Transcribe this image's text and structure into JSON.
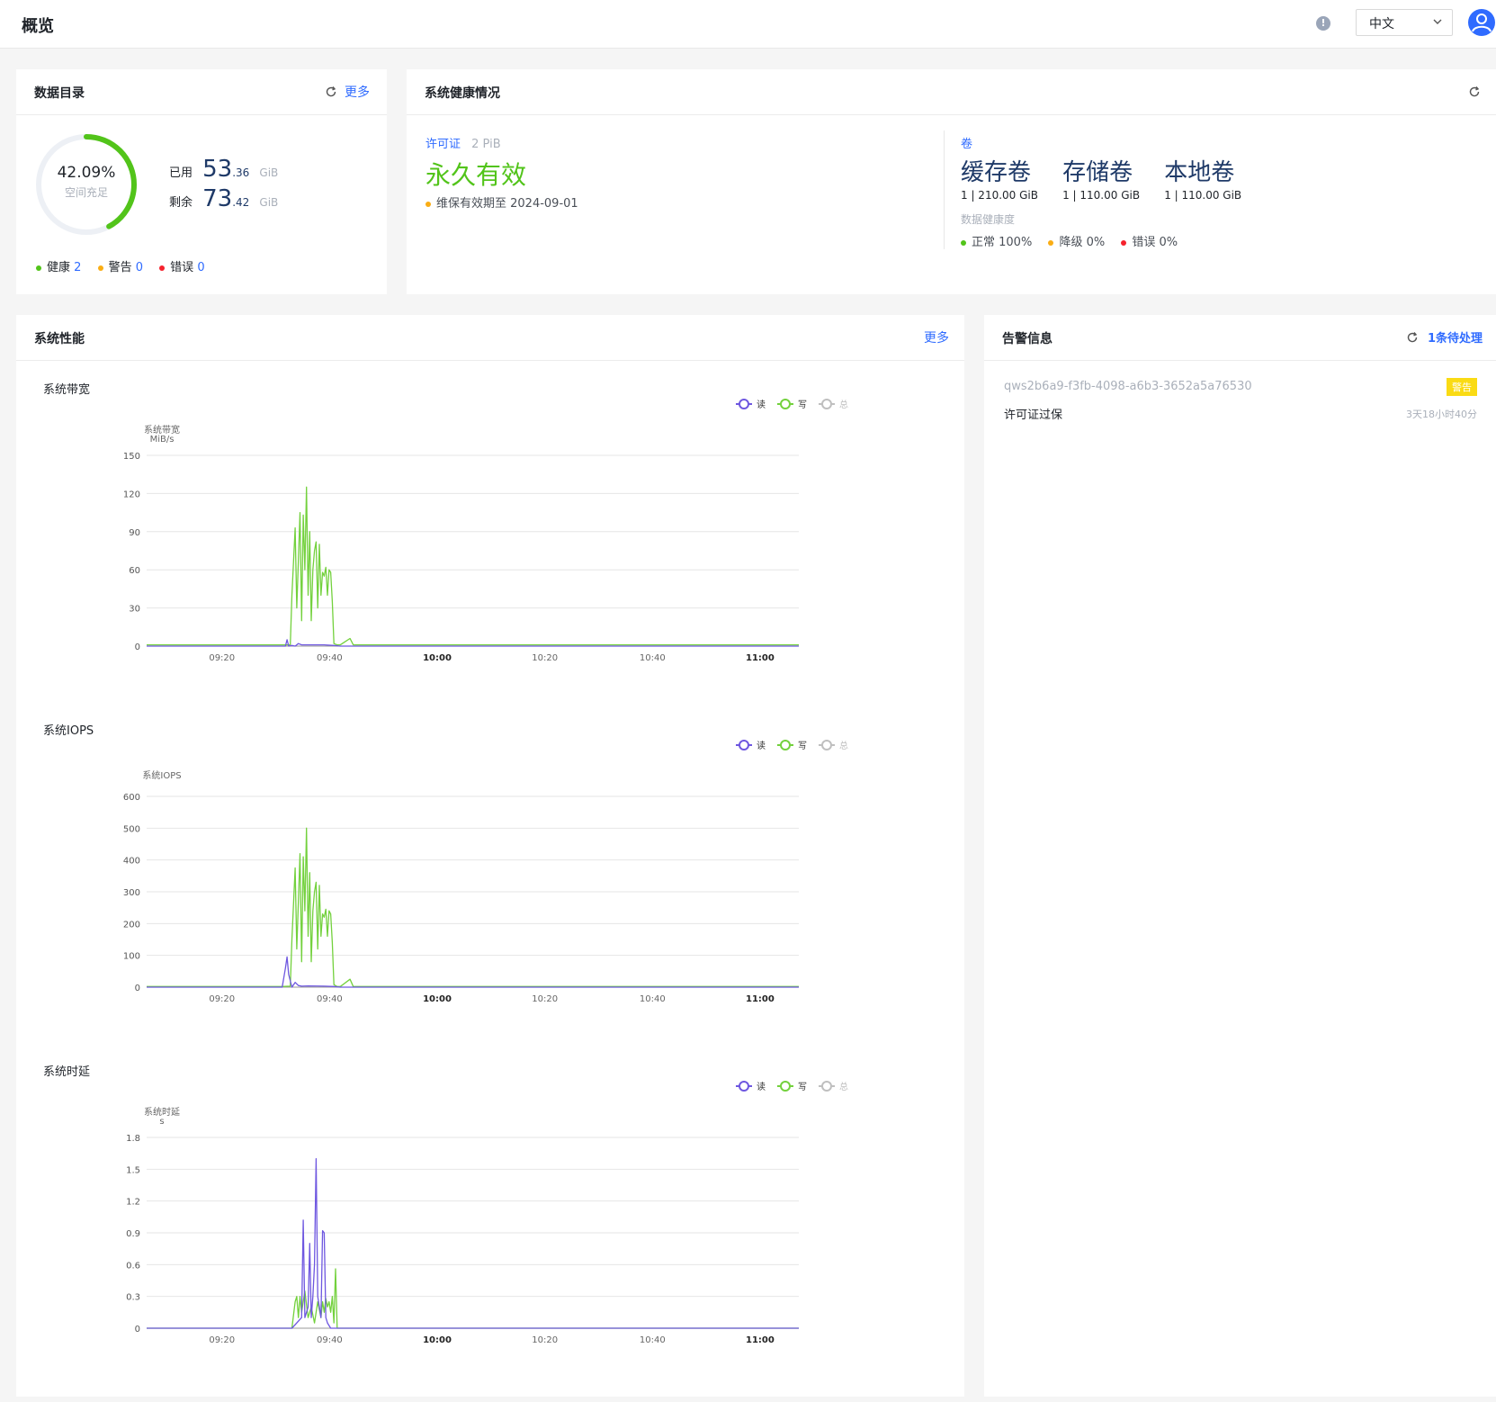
{
  "header": {
    "title": "概览",
    "language": "中文"
  },
  "catalog": {
    "title": "数据目录",
    "more": "更多",
    "percent": "42.09%",
    "percent_value": 42.09,
    "percent_caption": "空间充足",
    "used_label": "已用",
    "used_int": "53",
    "used_dec": ".36",
    "used_unit": "GiB",
    "free_label": "剩余",
    "free_int": "73",
    "free_dec": ".42",
    "free_unit": "GiB",
    "status": [
      {
        "label": "健康",
        "count": "2",
        "color": "#52c41a"
      },
      {
        "label": "警告",
        "count": "0",
        "color": "#faad14"
      },
      {
        "label": "错误",
        "count": "0",
        "color": "#f5222d"
      }
    ]
  },
  "health": {
    "title": "系统健康情况",
    "license_label": "许可证",
    "license_capacity": "2 PiB",
    "license_status": "永久有效",
    "maintenance": "维保有效期至 2024-09-01",
    "volume_label": "卷",
    "volumes": [
      {
        "name": "缓存卷",
        "detail": "1 | 210.00 GiB"
      },
      {
        "name": "存储卷",
        "detail": "1 | 110.00 GiB"
      },
      {
        "name": "本地卷",
        "detail": "1 | 110.00 GiB"
      }
    ],
    "data_health_label": "数据健康度",
    "data_health": [
      {
        "label": "正常 100%",
        "color": "#52c41a"
      },
      {
        "label": "降级 0%",
        "color": "#faad14"
      },
      {
        "label": "错误 0%",
        "color": "#f5222d"
      }
    ]
  },
  "performance": {
    "title": "系统性能",
    "more": "更多",
    "legend": [
      {
        "label": "读",
        "color": "#6e57e0"
      },
      {
        "label": "写",
        "color": "#73d13d"
      },
      {
        "label": "总",
        "color": "#bfbfbf"
      }
    ]
  },
  "alerts": {
    "title": "告警信息",
    "pending": "1条待处理",
    "items": [
      {
        "id": "qws2b6a9-f3fb-4098-a6b3-3652a5a76530",
        "level": "警告",
        "message": "许可证过保",
        "age": "3天18小时40分"
      }
    ]
  },
  "chart_data": [
    {
      "type": "line",
      "title": "系统带宽",
      "ylabel": "系统带宽",
      "yunit": "MiB/s",
      "yticks": [
        "0",
        "30",
        "60",
        "90",
        "120",
        "150"
      ],
      "ylim": [
        0,
        150
      ],
      "xticks": [
        "09:20",
        "09:40",
        "10:00",
        "10:20",
        "10:40",
        "11:00"
      ],
      "xticks_bold": [
        false,
        false,
        true,
        false,
        false,
        true
      ],
      "xlim": [
        9.1,
        11.12
      ],
      "series": [
        {
          "name": "读",
          "color": "#6e57e0",
          "x": [
            9.1,
            9.5,
            9.53,
            9.535,
            9.54,
            9.55,
            9.56,
            9.57,
            9.58,
            9.6,
            9.65,
            9.68,
            9.7,
            11.12
          ],
          "y": [
            0,
            0,
            0,
            5,
            0,
            0.5,
            0,
            2,
            1,
            1,
            1,
            0.5,
            0,
            0
          ]
        },
        {
          "name": "写",
          "color": "#73d13d",
          "x": [
            9.1,
            9.49,
            9.52,
            9.545,
            9.55,
            9.56,
            9.565,
            9.575,
            9.58,
            9.585,
            9.59,
            9.595,
            9.6,
            9.605,
            9.61,
            9.615,
            9.62,
            9.625,
            9.63,
            9.635,
            9.64,
            9.645,
            9.65,
            9.655,
            9.66,
            9.665,
            9.67,
            9.675,
            9.68,
            9.69,
            9.7,
            9.73,
            9.74,
            9.75,
            11.12
          ],
          "y": [
            1,
            1,
            1,
            1,
            40,
            93,
            30,
            105,
            20,
            103,
            60,
            125,
            40,
            90,
            20,
            60,
            75,
            82,
            30,
            80,
            40,
            58,
            55,
            62,
            40,
            60,
            58,
            35,
            2,
            1,
            1,
            6,
            1,
            1,
            1
          ]
        },
        {
          "name": "总",
          "color": "#bfbfbf",
          "x": [],
          "y": []
        }
      ]
    },
    {
      "type": "line",
      "title": "系统IOPS",
      "ylabel": "系统IOPS",
      "yunit": "",
      "yticks": [
        "0",
        "100",
        "200",
        "300",
        "400",
        "500",
        "600"
      ],
      "ylim": [
        0,
        600
      ],
      "xticks": [
        "09:20",
        "09:40",
        "10:00",
        "10:20",
        "10:40",
        "11:00"
      ],
      "xticks_bold": [
        false,
        false,
        true,
        false,
        false,
        true
      ],
      "xlim": [
        9.1,
        11.12
      ],
      "series": [
        {
          "name": "读",
          "color": "#6e57e0",
          "x": [
            9.1,
            9.5,
            9.52,
            9.53,
            9.535,
            9.54,
            9.55,
            9.56,
            9.57,
            9.58,
            9.6,
            9.65,
            9.68,
            9.7,
            11.12
          ],
          "y": [
            0,
            0,
            0,
            60,
            95,
            40,
            0,
            15,
            5,
            3,
            4,
            3,
            2,
            0,
            0
          ]
        },
        {
          "name": "写",
          "color": "#73d13d",
          "x": [
            9.1,
            9.49,
            9.52,
            9.545,
            9.55,
            9.56,
            9.565,
            9.575,
            9.58,
            9.585,
            9.59,
            9.595,
            9.6,
            9.605,
            9.61,
            9.615,
            9.62,
            9.625,
            9.63,
            9.635,
            9.64,
            9.645,
            9.65,
            9.655,
            9.66,
            9.665,
            9.67,
            9.675,
            9.68,
            9.69,
            9.7,
            9.73,
            9.74,
            9.75,
            11.12
          ],
          "y": [
            2,
            2,
            2,
            3,
            150,
            375,
            120,
            420,
            80,
            410,
            240,
            500,
            160,
            360,
            80,
            240,
            300,
            330,
            120,
            320,
            160,
            230,
            220,
            245,
            160,
            240,
            230,
            140,
            8,
            2,
            2,
            25,
            2,
            2,
            2
          ]
        },
        {
          "name": "总",
          "color": "#bfbfbf",
          "x": [],
          "y": []
        }
      ]
    },
    {
      "type": "line",
      "title": "系统时延",
      "ylabel": "系统时延",
      "yunit": "s",
      "yticks": [
        "0",
        "0.3",
        "0.6",
        "0.9",
        "1.2",
        "1.5",
        "1.8"
      ],
      "ylim": [
        0,
        1.8
      ],
      "xticks": [
        "09:20",
        "09:40",
        "10:00",
        "10:20",
        "10:40",
        "11:00"
      ],
      "xticks_bold": [
        false,
        false,
        true,
        false,
        false,
        true
      ],
      "xlim": [
        9.1,
        11.12
      ],
      "series": [
        {
          "name": "读",
          "color": "#6e57e0",
          "x": [
            9.1,
            9.5,
            9.55,
            9.58,
            9.585,
            9.59,
            9.6,
            9.605,
            9.61,
            9.615,
            9.62,
            9.625,
            9.63,
            9.635,
            9.64,
            9.645,
            9.65,
            9.655,
            9.66,
            9.67,
            11.12
          ],
          "y": [
            0,
            0,
            0,
            0.1,
            1.02,
            0.1,
            0.2,
            0.8,
            0.1,
            0.3,
            0.6,
            1.6,
            0.3,
            0.2,
            0.1,
            0.92,
            0.9,
            0.1,
            0.05,
            0,
            0
          ]
        },
        {
          "name": "写",
          "color": "#73d13d",
          "x": [
            9.1,
            9.52,
            9.55,
            9.56,
            9.565,
            9.57,
            9.575,
            9.58,
            9.59,
            9.6,
            9.61,
            9.62,
            9.63,
            9.64,
            9.645,
            9.65,
            9.655,
            9.66,
            9.665,
            9.67,
            9.675,
            9.68,
            9.685,
            9.69,
            9.7,
            11.12
          ],
          "y": [
            0,
            0,
            0,
            0.25,
            0.3,
            0.1,
            0.3,
            0.15,
            0.35,
            0.1,
            0.2,
            0.05,
            0.25,
            0.1,
            0.25,
            0.15,
            0.28,
            0.2,
            0.25,
            0.15,
            0.3,
            0.05,
            0.56,
            0,
            0,
            0
          ]
        },
        {
          "name": "总",
          "color": "#bfbfbf",
          "x": [],
          "y": []
        }
      ]
    }
  ]
}
